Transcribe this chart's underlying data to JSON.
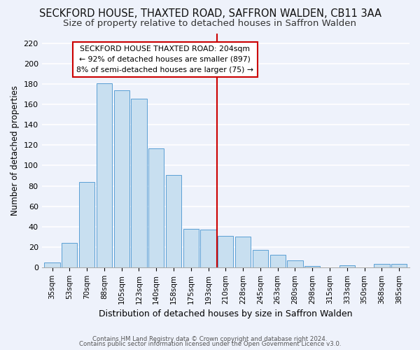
{
  "title": "SECKFORD HOUSE, THAXTED ROAD, SAFFRON WALDEN, CB11 3AA",
  "subtitle": "Size of property relative to detached houses in Saffron Walden",
  "xlabel": "Distribution of detached houses by size in Saffron Walden",
  "ylabel": "Number of detached properties",
  "bin_labels": [
    "35sqm",
    "53sqm",
    "70sqm",
    "88sqm",
    "105sqm",
    "123sqm",
    "140sqm",
    "158sqm",
    "175sqm",
    "193sqm",
    "210sqm",
    "228sqm",
    "245sqm",
    "263sqm",
    "280sqm",
    "298sqm",
    "315sqm",
    "333sqm",
    "350sqm",
    "368sqm",
    "385sqm"
  ],
  "bar_heights": [
    5,
    24,
    84,
    181,
    174,
    166,
    117,
    91,
    38,
    37,
    31,
    30,
    17,
    12,
    7,
    1,
    0,
    2,
    0,
    3,
    3
  ],
  "bar_color": "#c8dff0",
  "bar_edge_color": "#5a9fd4",
  "vline_x_index": 10,
  "vline_color": "#cc0000",
  "annotation_title": "SECKFORD HOUSE THAXTED ROAD: 204sqm",
  "annotation_line1": "← 92% of detached houses are smaller (897)",
  "annotation_line2": "8% of semi-detached houses are larger (75) →",
  "annotation_box_color": "#ffffff",
  "annotation_box_edge": "#cc0000",
  "ylim": [
    0,
    230
  ],
  "footer1": "Contains HM Land Registry data © Crown copyright and database right 2024.",
  "footer2": "Contains public sector information licensed under the Open Government Licence v3.0.",
  "background_color": "#eef2fb",
  "grid_color": "#ffffff",
  "title_fontsize": 10.5,
  "subtitle_fontsize": 9.5
}
